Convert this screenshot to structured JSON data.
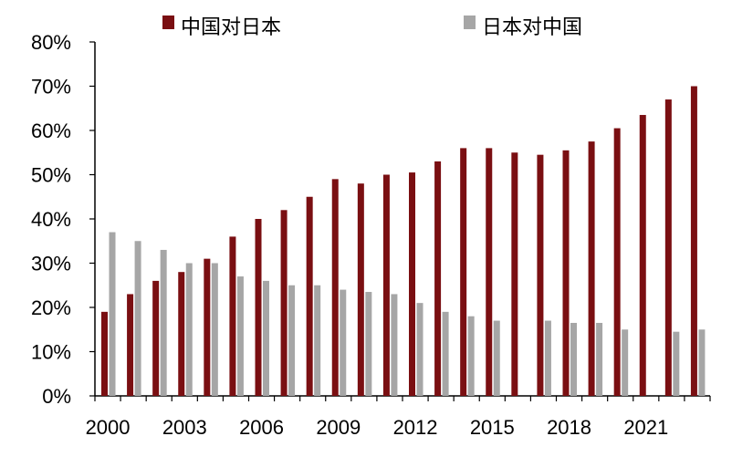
{
  "chart_data": {
    "type": "bar",
    "title": "",
    "xlabel": "",
    "ylabel": "",
    "ylim": [
      0,
      80
    ],
    "y_ticks": [
      "0%",
      "10%",
      "20%",
      "30%",
      "40%",
      "50%",
      "60%",
      "70%",
      "80%"
    ],
    "categories": [
      "2000",
      "2001",
      "2002",
      "2003",
      "2004",
      "2005",
      "2006",
      "2007",
      "2008",
      "2009",
      "2010",
      "2011",
      "2012",
      "2013",
      "2014",
      "2015",
      "2016",
      "2017",
      "2018",
      "2019",
      "2020",
      "2021",
      "2022",
      "2023"
    ],
    "x_tick_labels": [
      "2000",
      "2003",
      "2006",
      "2009",
      "2012",
      "2015",
      "2018",
      "2021"
    ],
    "legend_position": "top",
    "grid": false,
    "series": [
      {
        "name": "中国对日本",
        "color": "#7a0f12",
        "values": [
          19,
          23,
          26,
          28,
          31,
          36,
          40,
          42,
          45,
          49,
          48,
          50,
          50.5,
          53,
          56,
          56,
          55,
          54.5,
          55.5,
          57.5,
          60.5,
          63.5,
          67,
          70
        ]
      },
      {
        "name": "日本对中国",
        "color": "#a6a6a6",
        "values": [
          37,
          35,
          33,
          30,
          30,
          27,
          26,
          25,
          25,
          24,
          23.5,
          23,
          21,
          19,
          18,
          17,
          null,
          17,
          16.5,
          16.5,
          15,
          null,
          14.5,
          15
        ]
      }
    ]
  }
}
